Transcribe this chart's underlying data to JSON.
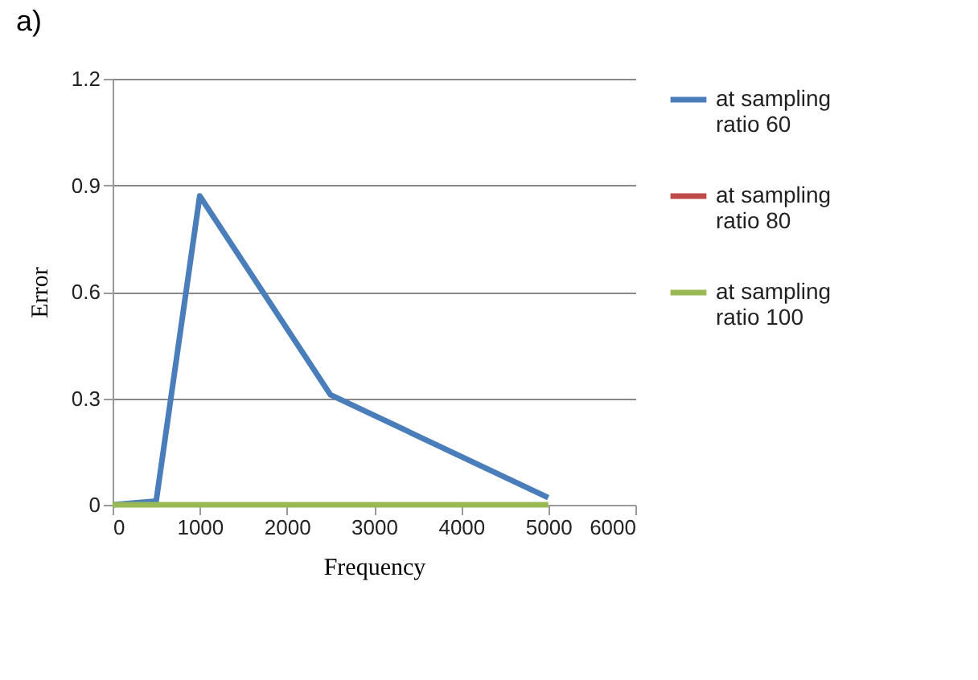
{
  "chart_data": {
    "type": "line",
    "title": "a)",
    "xlabel": "Frequency",
    "ylabel": "Error",
    "series": [
      {
        "name": "at sampling ratio 60",
        "color": "#4a7ebb",
        "x": [
          0,
          500,
          1000,
          2500,
          5000
        ],
        "values": [
          0,
          0.01,
          0.87,
          0.31,
          0.02
        ]
      },
      {
        "name": "at sampling ratio 80",
        "color": "#be4b48",
        "values": [
          null,
          null,
          null,
          null,
          null
        ]
      },
      {
        "name": "at sampling ratio 100",
        "color": "#98b954",
        "x": [
          0,
          500,
          1000,
          2500,
          5000
        ],
        "values": [
          0,
          0,
          0,
          0,
          0
        ]
      }
    ],
    "xlim": [
      0,
      6000
    ],
    "xticks": [
      0,
      1000,
      2000,
      3000,
      4000,
      5000,
      6000
    ],
    "ylim": [
      0,
      1.2
    ],
    "yticks": [
      0,
      0.3,
      0.6,
      0.9,
      1.2
    ],
    "grid": "y",
    "legend": "right",
    "line_style": "solid",
    "marker": "none"
  }
}
